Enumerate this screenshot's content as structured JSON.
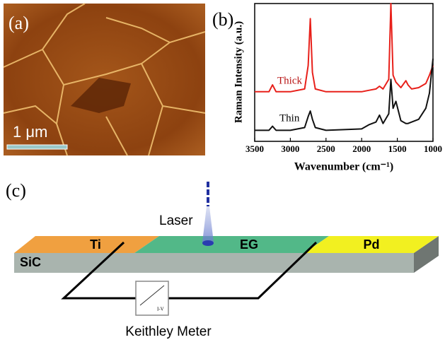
{
  "panel_a": {
    "label": "(a)",
    "scale_bar": "1 μm"
  },
  "chart_data": {
    "type": "line",
    "label": "(b)",
    "x_label": "Wavenumber (cm⁻¹)",
    "y_label": "Raman Intensity (a.u.)",
    "x": [
      3500,
      3300,
      3250,
      3200,
      3000,
      2800,
      2750,
      2720,
      2690,
      2650,
      2500,
      2000,
      1900,
      1800,
      1750,
      1700,
      1620,
      1590,
      1560,
      1520,
      1450,
      1380,
      1350,
      1300,
      1200,
      1100,
      1050,
      1000
    ],
    "series": [
      {
        "name": "Thick",
        "color": "#e8201a",
        "values": [
          3.6,
          3.6,
          4.1,
          3.6,
          3.6,
          3.8,
          5.5,
          8.9,
          5.0,
          3.8,
          3.6,
          3.6,
          3.7,
          3.8,
          4.0,
          3.8,
          4.5,
          10,
          4.8,
          4.3,
          3.9,
          4.4,
          4.1,
          3.8,
          3.9,
          4.2,
          4.8,
          5.5
        ]
      },
      {
        "name": "Thin",
        "color": "#111111",
        "values": [
          0.8,
          0.8,
          1.1,
          0.8,
          0.8,
          1.0,
          1.8,
          2.2,
          1.6,
          1.0,
          0.8,
          0.9,
          1.2,
          1.4,
          1.9,
          1.3,
          2.0,
          4.5,
          2.4,
          2.9,
          1.5,
          1.3,
          1.3,
          1.4,
          1.6,
          2.4,
          3.5,
          6.0
        ]
      }
    ],
    "xlim": [
      3500,
      1000
    ],
    "xticks": [
      3500,
      3000,
      2500,
      2000,
      1500,
      1000
    ],
    "ylim": [
      0,
      10
    ]
  },
  "panel_c": {
    "label": "(c)",
    "laser": "Laser",
    "contacts": [
      "Ti",
      "EG",
      "Pd"
    ],
    "substrate": "SiC",
    "meter": "I-V",
    "meter_caption": "Keithley Meter"
  }
}
